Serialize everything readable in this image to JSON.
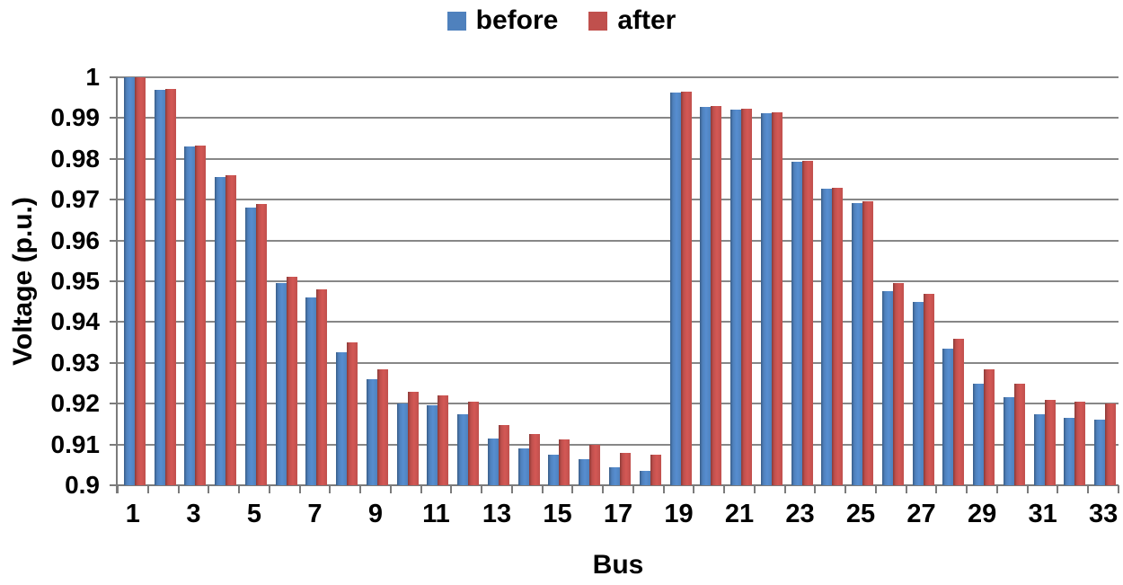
{
  "chart_data": {
    "type": "bar",
    "title": "",
    "xlabel": "Bus",
    "ylabel": "Voltage (p.u.)",
    "ylim": [
      0.9,
      1.0
    ],
    "ytick_step": 0.01,
    "ytick_labels": [
      "0.9",
      "0.91",
      "0.92",
      "0.93",
      "0.94",
      "0.95",
      "0.96",
      "0.97",
      "0.98",
      "0.99",
      "1"
    ],
    "categories": [
      1,
      2,
      3,
      4,
      5,
      6,
      7,
      8,
      9,
      10,
      11,
      12,
      13,
      14,
      15,
      16,
      17,
      18,
      19,
      20,
      21,
      22,
      23,
      24,
      25,
      26,
      27,
      28,
      29,
      30,
      31,
      32,
      33
    ],
    "xtick_labels": [
      "1",
      "3",
      "5",
      "7",
      "9",
      "11",
      "13",
      "15",
      "17",
      "19",
      "21",
      "23",
      "25",
      "27",
      "29",
      "31",
      "33"
    ],
    "grid": true,
    "legend_position": "top-center",
    "series": [
      {
        "name": "before",
        "color": "#4F81BD",
        "values": [
          1.0,
          0.997,
          0.983,
          0.9755,
          0.968,
          0.9495,
          0.946,
          0.9325,
          0.926,
          0.92,
          0.9195,
          0.9175,
          0.9115,
          0.909,
          0.9075,
          0.9065,
          0.9045,
          0.9035,
          0.9963,
          0.9928,
          0.992,
          0.9913,
          0.9793,
          0.9726,
          0.9692,
          0.9475,
          0.945,
          0.9335,
          0.925,
          0.9215,
          0.9175,
          0.9165,
          0.916
        ]
      },
      {
        "name": "after",
        "color": "#C0504D",
        "values": [
          1.0,
          0.9972,
          0.9832,
          0.976,
          0.969,
          0.951,
          0.948,
          0.935,
          0.9285,
          0.923,
          0.922,
          0.9205,
          0.9148,
          0.9125,
          0.9113,
          0.91,
          0.908,
          0.9075,
          0.9965,
          0.993,
          0.9922,
          0.9915,
          0.9796,
          0.973,
          0.9697,
          0.9495,
          0.947,
          0.936,
          0.9285,
          0.925,
          0.921,
          0.9205,
          0.92
        ]
      }
    ],
    "colors": {
      "gridline": "#878787",
      "axis": "#7b7b7b",
      "text": "#000000",
      "background": "#ffffff"
    }
  }
}
